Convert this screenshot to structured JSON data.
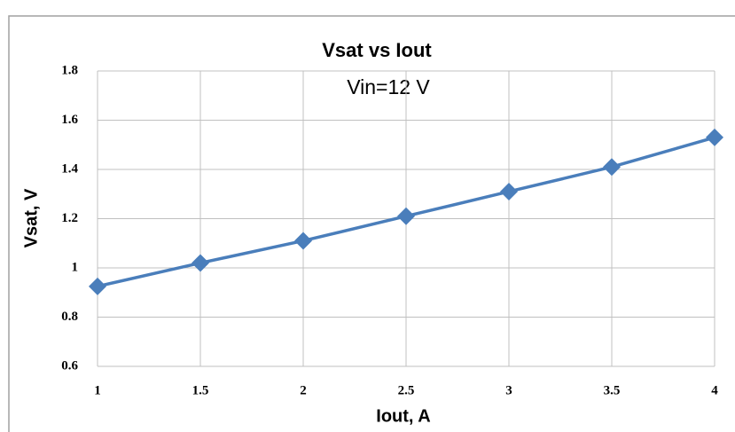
{
  "chart_data": {
    "type": "line",
    "title": "Vsat vs Iout",
    "subtitle": "Vin=12 V",
    "x_label": "Iout,  A",
    "y_label": "Vsat,  V",
    "x": [
      1,
      1.5,
      2,
      2.5,
      3,
      3.5,
      4
    ],
    "series": [
      {
        "name": "Vsat",
        "color": "#4a7ebb",
        "values": [
          0.925,
          1.02,
          1.11,
          1.21,
          1.31,
          1.41,
          1.53
        ]
      }
    ],
    "xlim": [
      1,
      4
    ],
    "xticks": [
      1,
      1.5,
      2,
      2.5,
      3,
      3.5,
      4
    ],
    "ylim": [
      0.6,
      1.8
    ],
    "yticks": [
      0.6,
      0.8,
      1,
      1.2,
      1.4,
      1.6,
      1.8
    ],
    "grid": true
  }
}
